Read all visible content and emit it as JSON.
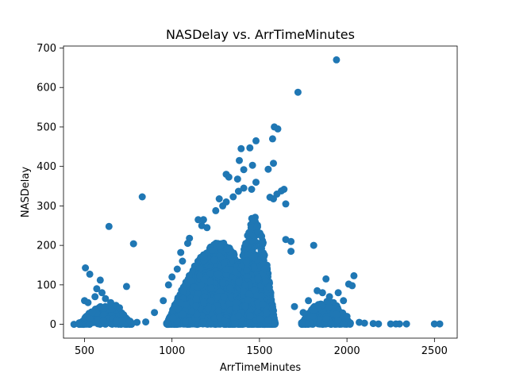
{
  "chart_data": {
    "type": "scatter",
    "title": "NASDelay vs. ArrTimeMinutes",
    "xlabel": "ArrTimeMinutes",
    "ylabel": "NASDelay",
    "xlim": [
      380,
      2630
    ],
    "ylim": [
      -35,
      705
    ],
    "xticks": [
      500,
      1000,
      1500,
      2000,
      2500
    ],
    "yticks": [
      0,
      100,
      200,
      300,
      400,
      500,
      600,
      700
    ],
    "grid": false,
    "marker_color": "#1f77b4",
    "points": [
      {
        "x": 1940,
        "y": 670
      },
      {
        "x": 1720,
        "y": 588
      },
      {
        "x": 1585,
        "y": 500
      },
      {
        "x": 1605,
        "y": 495
      },
      {
        "x": 1575,
        "y": 470
      },
      {
        "x": 1480,
        "y": 465
      },
      {
        "x": 1395,
        "y": 445
      },
      {
        "x": 1445,
        "y": 447
      },
      {
        "x": 1385,
        "y": 415
      },
      {
        "x": 1460,
        "y": 403
      },
      {
        "x": 1580,
        "y": 408
      },
      {
        "x": 1410,
        "y": 392
      },
      {
        "x": 1550,
        "y": 393
      },
      {
        "x": 1310,
        "y": 380
      },
      {
        "x": 1325,
        "y": 373
      },
      {
        "x": 1375,
        "y": 368
      },
      {
        "x": 1480,
        "y": 360
      },
      {
        "x": 1380,
        "y": 337
      },
      {
        "x": 1410,
        "y": 345
      },
      {
        "x": 1455,
        "y": 342
      },
      {
        "x": 1640,
        "y": 342
      },
      {
        "x": 1625,
        "y": 338
      },
      {
        "x": 1600,
        "y": 330
      },
      {
        "x": 1350,
        "y": 323
      },
      {
        "x": 1270,
        "y": 318
      },
      {
        "x": 1310,
        "y": 310
      },
      {
        "x": 1560,
        "y": 322
      },
      {
        "x": 1580,
        "y": 318
      },
      {
        "x": 1650,
        "y": 305
      },
      {
        "x": 830,
        "y": 323
      },
      {
        "x": 1250,
        "y": 288
      },
      {
        "x": 1290,
        "y": 300
      },
      {
        "x": 1180,
        "y": 265
      },
      {
        "x": 1150,
        "y": 265
      },
      {
        "x": 640,
        "y": 248
      },
      {
        "x": 1170,
        "y": 250
      },
      {
        "x": 1200,
        "y": 245
      },
      {
        "x": 1100,
        "y": 218
      },
      {
        "x": 1090,
        "y": 205
      },
      {
        "x": 1650,
        "y": 215
      },
      {
        "x": 1680,
        "y": 210
      },
      {
        "x": 780,
        "y": 204
      },
      {
        "x": 1810,
        "y": 200
      },
      {
        "x": 1680,
        "y": 185
      },
      {
        "x": 1050,
        "y": 182
      },
      {
        "x": 505,
        "y": 143
      },
      {
        "x": 530,
        "y": 127
      },
      {
        "x": 2040,
        "y": 123
      },
      {
        "x": 590,
        "y": 112
      },
      {
        "x": 1880,
        "y": 115
      },
      {
        "x": 2010,
        "y": 102
      },
      {
        "x": 2030,
        "y": 98
      },
      {
        "x": 740,
        "y": 96
      },
      {
        "x": 2070,
        "y": 5
      },
      {
        "x": 2100,
        "y": 3
      },
      {
        "x": 2150,
        "y": 2
      },
      {
        "x": 2180,
        "y": 1
      },
      {
        "x": 2250,
        "y": 1
      },
      {
        "x": 2280,
        "y": 1
      },
      {
        "x": 2300,
        "y": 1
      },
      {
        "x": 2340,
        "y": 1
      },
      {
        "x": 2500,
        "y": 1
      },
      {
        "x": 2530,
        "y": 1
      },
      {
        "x": 440,
        "y": 0
      },
      {
        "x": 470,
        "y": 0
      },
      {
        "x": 500,
        "y": 60
      },
      {
        "x": 520,
        "y": 55
      },
      {
        "x": 560,
        "y": 70
      },
      {
        "x": 570,
        "y": 90
      },
      {
        "x": 600,
        "y": 80
      },
      {
        "x": 620,
        "y": 65
      },
      {
        "x": 650,
        "y": 55
      },
      {
        "x": 680,
        "y": 48
      },
      {
        "x": 700,
        "y": 42
      },
      {
        "x": 720,
        "y": 25
      },
      {
        "x": 760,
        "y": 8
      },
      {
        "x": 800,
        "y": 5
      },
      {
        "x": 850,
        "y": 6
      },
      {
        "x": 900,
        "y": 30
      },
      {
        "x": 950,
        "y": 60
      },
      {
        "x": 980,
        "y": 100
      },
      {
        "x": 1000,
        "y": 120
      },
      {
        "x": 1030,
        "y": 140
      },
      {
        "x": 1060,
        "y": 160
      },
      {
        "x": 1780,
        "y": 60
      },
      {
        "x": 1830,
        "y": 85
      },
      {
        "x": 1860,
        "y": 80
      },
      {
        "x": 1900,
        "y": 70
      },
      {
        "x": 1950,
        "y": 80
      },
      {
        "x": 1980,
        "y": 60
      },
      {
        "x": 2000,
        "y": 20
      },
      {
        "x": 1700,
        "y": 45
      },
      {
        "x": 1750,
        "y": 30
      }
    ],
    "density_regions": [
      {
        "x_center": 620,
        "x_spread": 150,
        "y_max": 55,
        "n": 240
      },
      {
        "x_center": 1270,
        "x_spread": 300,
        "y_max": 210,
        "n": 2200
      },
      {
        "x_center": 1470,
        "x_spread": 120,
        "y_max": 280,
        "n": 700
      },
      {
        "x_center": 1880,
        "x_spread": 140,
        "y_max": 65,
        "n": 360
      }
    ]
  }
}
